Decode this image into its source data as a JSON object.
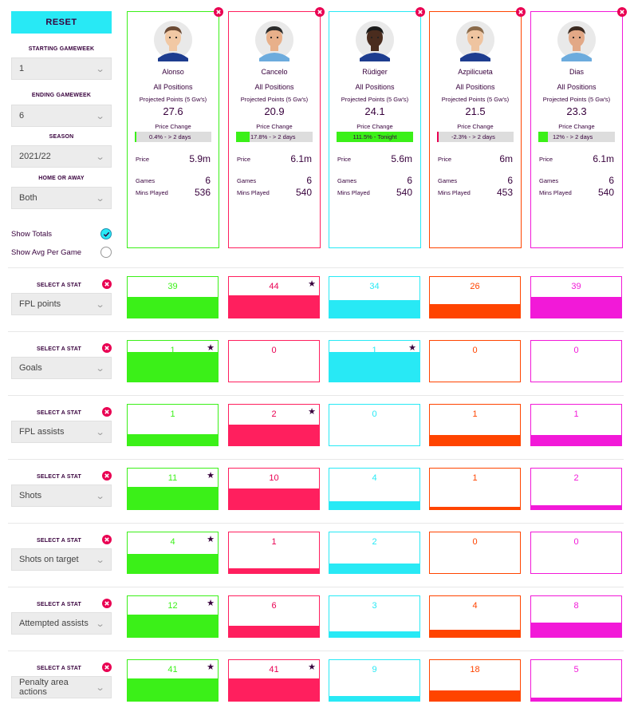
{
  "sidebar": {
    "reset_label": "RESET",
    "starting_gameweek": {
      "label": "STARTING GAMEWEEK",
      "value": "1"
    },
    "ending_gameweek": {
      "label": "ENDING GAMEWEEK",
      "value": "6"
    },
    "season": {
      "label": "SEASON",
      "value": "2021/22"
    },
    "home_away": {
      "label": "HOME OR AWAY",
      "value": "Both"
    },
    "show_totals": {
      "label": "Show Totals",
      "checked": true
    },
    "show_avg": {
      "label": "Show Avg Per Game",
      "checked": false
    }
  },
  "labels": {
    "position": "All Positions",
    "projected": "Projected Points (5 Gw's)",
    "price_change": "Price Change",
    "price": "Price",
    "games": "Games",
    "mins": "Mins Played",
    "select_stat": "SELECT A STAT"
  },
  "colors": {
    "navy": "#37003c",
    "remove": "#e90052",
    "players": [
      "#3bf018",
      "#ff1f5e",
      "#28e9f5",
      "#ff4400",
      "#f219d8"
    ],
    "value_text": [
      "#3bf018",
      "#e90052",
      "#28e9f5",
      "#ff4400",
      "#f219d8"
    ]
  },
  "players": [
    {
      "name": "Alonso",
      "projected": "27.6",
      "price_change": "0.4% - > 2 days",
      "pc_fill": 0.02,
      "price": "5.9m",
      "games": "6",
      "mins": "536",
      "skin": "#f1c8a4",
      "hair": "#6b4a34",
      "shirt": "#1d3c8f"
    },
    {
      "name": "Cancelo",
      "projected": "20.9",
      "price_change": "17.8% - > 2 days",
      "pc_fill": 0.18,
      "price": "6.1m",
      "games": "6",
      "mins": "540",
      "skin": "#e8b08a",
      "hair": "#2b2b2b",
      "shirt": "#6cabdd"
    },
    {
      "name": "Rüdiger",
      "projected": "24.1",
      "price_change": "111.5% - Tonight",
      "pc_fill": 1.0,
      "price": "5.6m",
      "games": "6",
      "mins": "540",
      "skin": "#4a2c1e",
      "hair": "#1a1a1a",
      "shirt": "#1d3c8f"
    },
    {
      "name": "Azpilicueta",
      "projected": "21.5",
      "price_change": "-2.3% - > 2 days",
      "pc_fill": 0.02,
      "price": "6m",
      "games": "6",
      "mins": "453",
      "skin": "#efc4a0",
      "hair": "#8a6a4a",
      "shirt": "#1d3c8f"
    },
    {
      "name": "Dias",
      "projected": "23.3",
      "price_change": "12% - > 2 days",
      "pc_fill": 0.12,
      "price": "6.1m",
      "games": "6",
      "mins": "540",
      "skin": "#e2a886",
      "hair": "#3b2a20",
      "shirt": "#6cabdd"
    }
  ],
  "stats": [
    {
      "name": "FPL points",
      "values": [
        39,
        44,
        34,
        26,
        39
      ],
      "fills": [
        0.5,
        0.55,
        0.43,
        0.33,
        0.5
      ],
      "star": 1
    },
    {
      "name": "Goals",
      "values": [
        1,
        0,
        1,
        0,
        0
      ],
      "fills": [
        0.73,
        0,
        0.73,
        0,
        0
      ],
      "star": [
        0,
        2
      ]
    },
    {
      "name": "FPL assists",
      "values": [
        1,
        2,
        0,
        1,
        1
      ],
      "fills": [
        0.28,
        0.5,
        0,
        0.25,
        0.25
      ],
      "star": 1
    },
    {
      "name": "Shots",
      "values": [
        11,
        10,
        4,
        1,
        2
      ],
      "fills": [
        0.55,
        0.5,
        0.2,
        0.05,
        0.1
      ],
      "star": 0
    },
    {
      "name": "Shots on target",
      "values": [
        4,
        1,
        2,
        0,
        0
      ],
      "fills": [
        0.48,
        0.12,
        0.24,
        0,
        0
      ],
      "star": 0
    },
    {
      "name": "Attempted assists",
      "values": [
        12,
        6,
        3,
        4,
        8
      ],
      "fills": [
        0.55,
        0.27,
        0.13,
        0.18,
        0.36
      ],
      "star": 0
    },
    {
      "name": "Penalty area actions",
      "values": [
        41,
        41,
        9,
        18,
        5
      ],
      "fills": [
        0.55,
        0.55,
        0.12,
        0.25,
        0.07
      ],
      "star": [
        0,
        1
      ]
    }
  ]
}
